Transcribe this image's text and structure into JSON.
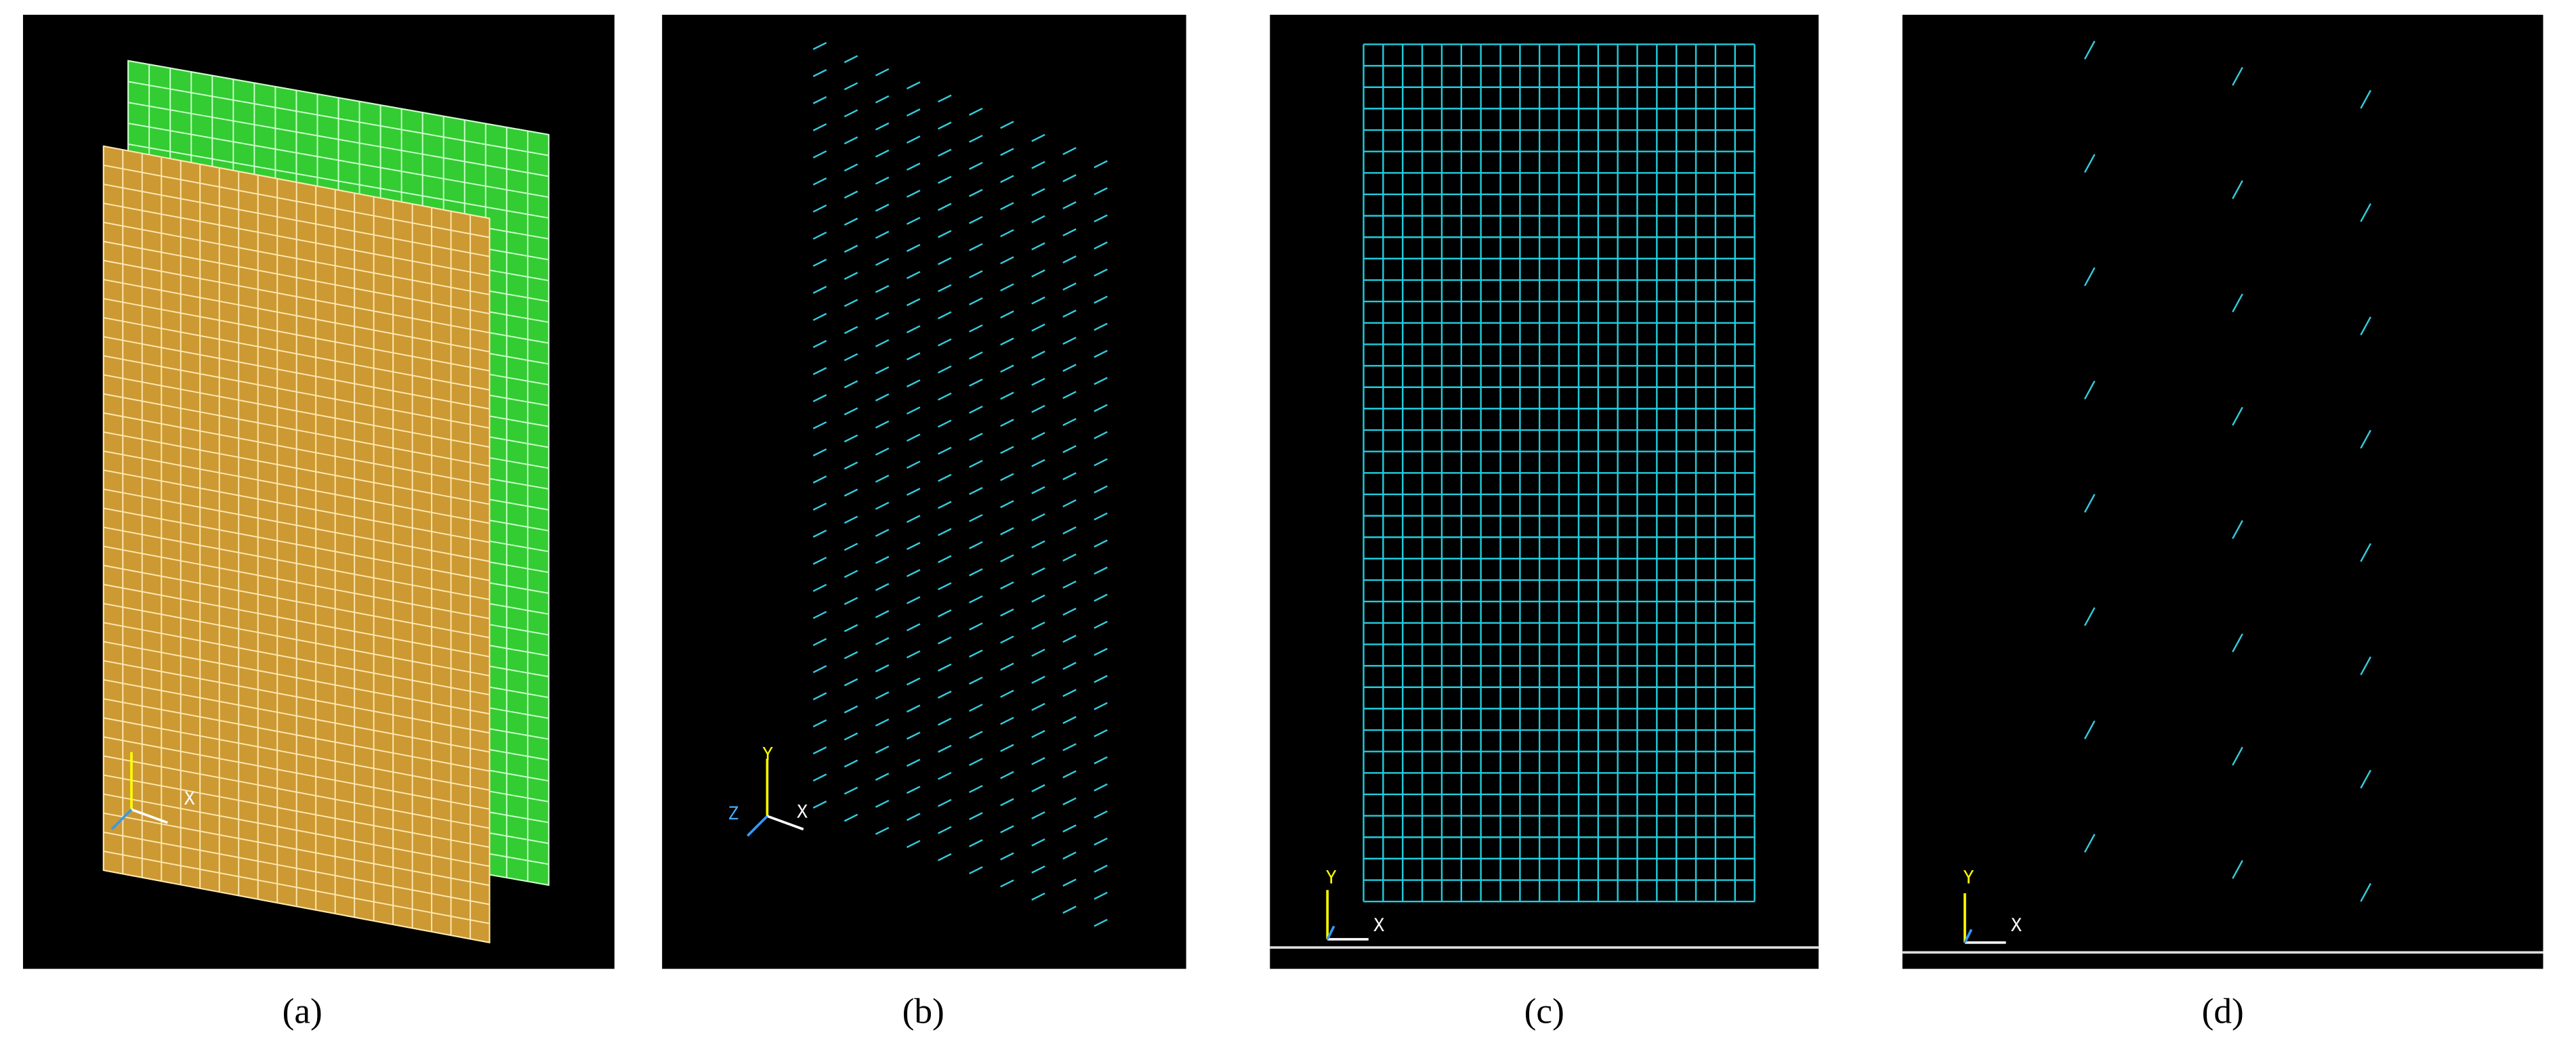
{
  "panels": [
    {
      "caption": "(a)",
      "axes": {
        "x": "X"
      }
    },
    {
      "caption": "(b)",
      "axes": {
        "y": "Y",
        "z": "Z",
        "x": "X"
      }
    },
    {
      "caption": "(c)",
      "axes": {
        "y": "Y",
        "x": "X"
      }
    },
    {
      "caption": "(d)",
      "axes": {
        "y": "Y",
        "x": "X"
      }
    }
  ]
}
